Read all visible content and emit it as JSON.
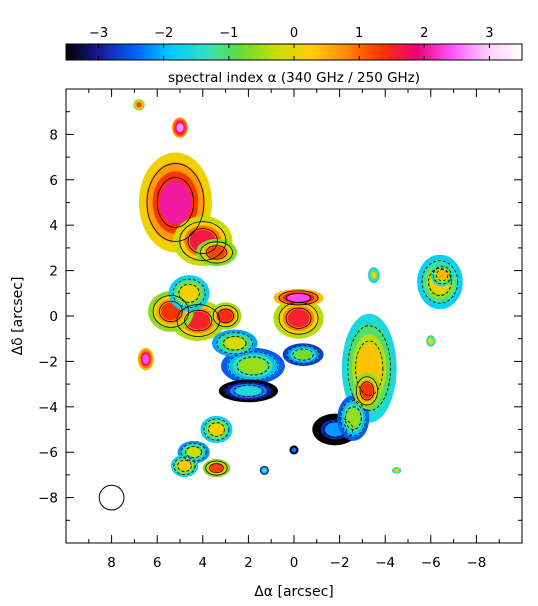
{
  "chart_data": {
    "type": "heatmap",
    "title": "spectral index α (340 GHz / 250 GHz)",
    "xlabel": "Δα [arcsec]",
    "ylabel": "Δδ [arcsec]",
    "xlim": [
      10,
      -10
    ],
    "ylim": [
      -10,
      10
    ],
    "x_ticks": [
      8,
      6,
      4,
      2,
      0,
      -2,
      -4,
      -6,
      -8
    ],
    "x_tick_labels": [
      "8",
      "6",
      "4",
      "2",
      "0",
      "−2",
      "−4",
      "−6",
      "−8"
    ],
    "y_ticks": [
      8,
      6,
      4,
      2,
      0,
      -2,
      -4,
      -6,
      -8
    ],
    "y_tick_labels": [
      "8",
      "6",
      "4",
      "2",
      "0",
      "−2",
      "−4",
      "−6",
      "−8"
    ],
    "colorbar": {
      "range": [
        -3.5,
        3.5
      ],
      "ticks": [
        -3,
        -2,
        -1,
        0,
        1,
        2,
        3
      ],
      "tick_labels": [
        "−3",
        "−2",
        "−1",
        "0",
        "1",
        "2",
        "3"
      ],
      "colormap": [
        "#000000",
        "#1a1aa0",
        "#0066ff",
        "#00ccff",
        "#33e0c0",
        "#66dd33",
        "#ccdd00",
        "#ffcc00",
        "#ff8800",
        "#ff3300",
        "#ee0077",
        "#ff55ff",
        "#ffccff",
        "#ffffff"
      ]
    },
    "beam": {
      "x": 8.0,
      "y": -8.0,
      "size_arcsec": 0.7
    },
    "blobs": [
      {
        "x": 5.2,
        "y": 5.0,
        "rx": 1.6,
        "ry": 2.2,
        "alpha": 1.0
      },
      {
        "x": 4.0,
        "y": 3.3,
        "rx": 1.3,
        "ry": 1.1,
        "alpha": 0.6
      },
      {
        "x": 3.4,
        "y": 2.8,
        "rx": 0.9,
        "ry": 0.6,
        "alpha": 0.2
      },
      {
        "x": 4.6,
        "y": 1.0,
        "rx": 0.9,
        "ry": 0.8,
        "alpha": -0.9
      },
      {
        "x": 5.4,
        "y": 0.2,
        "rx": 1.0,
        "ry": 0.9,
        "alpha": 0.3
      },
      {
        "x": 4.2,
        "y": -0.2,
        "rx": 1.2,
        "ry": 0.9,
        "alpha": 0.5
      },
      {
        "x": 3.0,
        "y": 0.0,
        "rx": 0.7,
        "ry": 0.6,
        "alpha": 0.4
      },
      {
        "x": 2.6,
        "y": -1.2,
        "rx": 1.0,
        "ry": 0.6,
        "alpha": -1.2
      },
      {
        "x": 1.8,
        "y": -2.2,
        "rx": 1.4,
        "ry": 0.8,
        "alpha": -1.6
      },
      {
        "x": 2.0,
        "y": -3.3,
        "rx": 1.3,
        "ry": 0.5,
        "alpha": -2.6
      },
      {
        "x": -0.2,
        "y": -0.1,
        "rx": 1.1,
        "ry": 0.9,
        "alpha": 0.5
      },
      {
        "x": -0.2,
        "y": 0.8,
        "rx": 1.1,
        "ry": 0.4,
        "alpha": 1.3
      },
      {
        "x": -0.4,
        "y": -1.7,
        "rx": 0.9,
        "ry": 0.5,
        "alpha": -1.8
      },
      {
        "x": -3.3,
        "y": -2.3,
        "rx": 1.2,
        "ry": 2.4,
        "alpha": -0.7
      },
      {
        "x": -3.2,
        "y": -3.3,
        "rx": 0.6,
        "ry": 0.8,
        "alpha": 0.3
      },
      {
        "x": -1.8,
        "y": -5.0,
        "rx": 1.0,
        "ry": 0.7,
        "alpha": -3.2
      },
      {
        "x": -2.6,
        "y": -4.5,
        "rx": 0.7,
        "ry": 1.0,
        "alpha": -1.6
      },
      {
        "x": -6.4,
        "y": 1.5,
        "rx": 1.0,
        "ry": 1.2,
        "alpha": -0.9
      },
      {
        "x": -6.5,
        "y": 1.8,
        "rx": 0.5,
        "ry": 0.5,
        "alpha": -0.6
      },
      {
        "x": -3.5,
        "y": 1.8,
        "rx": 0.25,
        "ry": 0.35,
        "alpha": -1.0
      },
      {
        "x": -6.0,
        "y": -1.1,
        "rx": 0.2,
        "ry": 0.25,
        "alpha": -0.8
      },
      {
        "x": -4.5,
        "y": -6.8,
        "rx": 0.2,
        "ry": 0.15,
        "alpha": -0.8
      },
      {
        "x": 3.4,
        "y": -5.0,
        "rx": 0.7,
        "ry": 0.6,
        "alpha": -0.9
      },
      {
        "x": 4.4,
        "y": -6.0,
        "rx": 0.7,
        "ry": 0.5,
        "alpha": -1.3
      },
      {
        "x": 3.4,
        "y": -6.7,
        "rx": 0.6,
        "ry": 0.4,
        "alpha": 0.2
      },
      {
        "x": 4.8,
        "y": -6.6,
        "rx": 0.6,
        "ry": 0.5,
        "alpha": -0.8
      },
      {
        "x": 1.3,
        "y": -6.8,
        "rx": 0.2,
        "ry": 0.2,
        "alpha": -2.2
      },
      {
        "x": 0.0,
        "y": -5.9,
        "rx": 0.2,
        "ry": 0.2,
        "alpha": -3.3
      },
      {
        "x": 6.8,
        "y": 9.3,
        "rx": 0.25,
        "ry": 0.25,
        "alpha": 0.2
      },
      {
        "x": 5.0,
        "y": 8.3,
        "rx": 0.35,
        "ry": 0.45,
        "alpha": 1.6
      },
      {
        "x": 6.5,
        "y": -1.9,
        "rx": 0.35,
        "ry": 0.5,
        "alpha": 1.3
      }
    ]
  }
}
